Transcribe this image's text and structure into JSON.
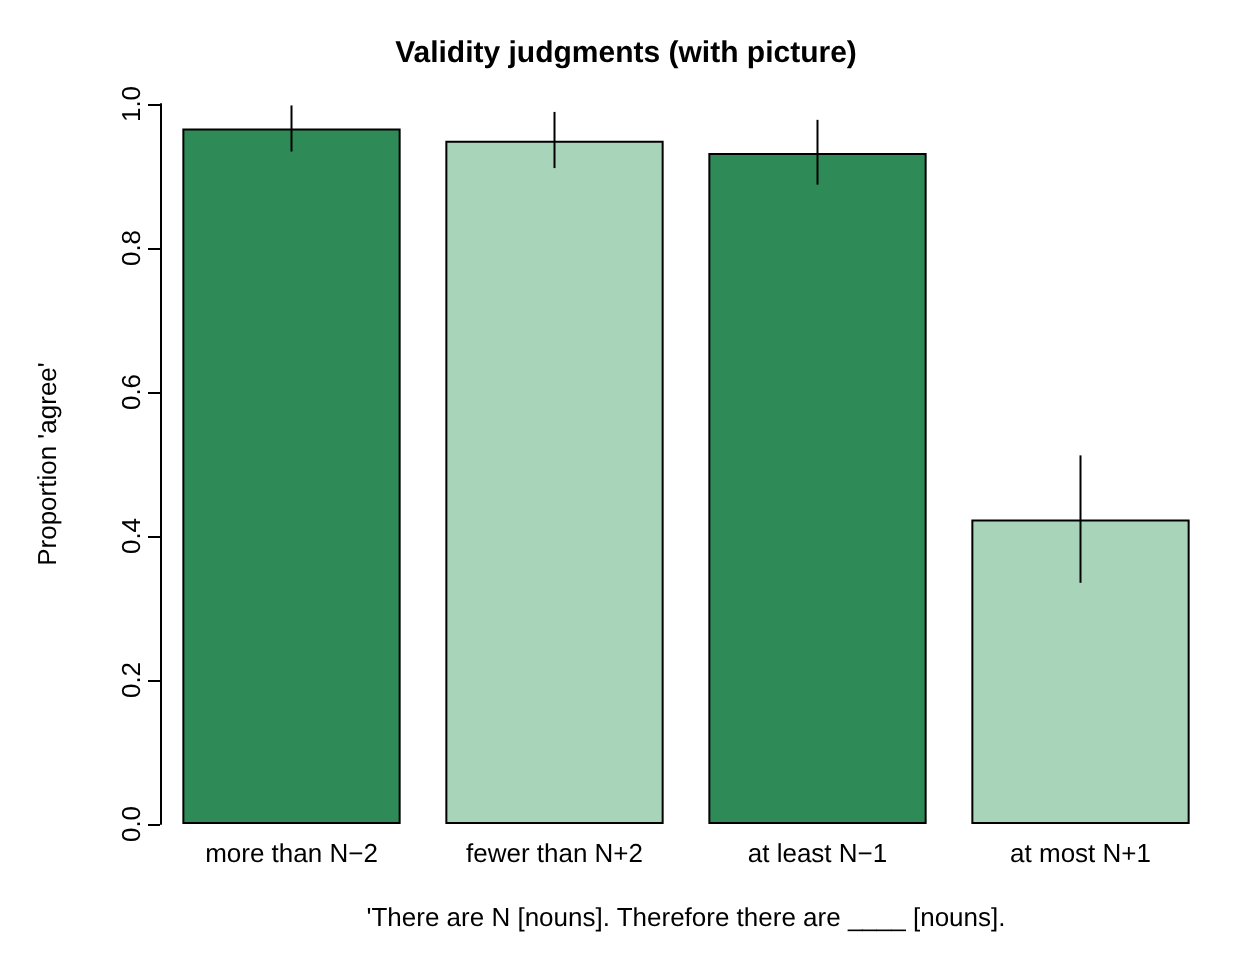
{
  "chart_data": {
    "type": "bar",
    "title": "Validity judgments (with picture)",
    "xlabel": "'There are N [nouns]. Therefore there are ____ [nouns].",
    "ylabel": "Proportion 'agree'",
    "categories": [
      "more than N−2",
      "fewer than N+2",
      "at least N−1",
      "at most N+1"
    ],
    "values": [
      0.966,
      0.949,
      0.932,
      0.423
    ],
    "colors": [
      "#2e8b57",
      "#a8d5b9",
      "#2e8b57",
      "#a8d5b9"
    ],
    "errors": [
      [
        0.934,
        0.998
      ],
      [
        0.911,
        0.989
      ],
      [
        0.888,
        0.978
      ],
      [
        0.335,
        0.512
      ]
    ],
    "ylim": [
      0,
      1
    ],
    "yticks": [
      {
        "value": 0,
        "label": "0.0"
      },
      {
        "value": 0.2,
        "label": "0.2"
      },
      {
        "value": 0.4,
        "label": "0.4"
      },
      {
        "value": 0.6,
        "label": "0.6"
      },
      {
        "value": 0.8,
        "label": "0.8"
      },
      {
        "value": 1,
        "label": "1.0"
      }
    ],
    "grid": false
  }
}
